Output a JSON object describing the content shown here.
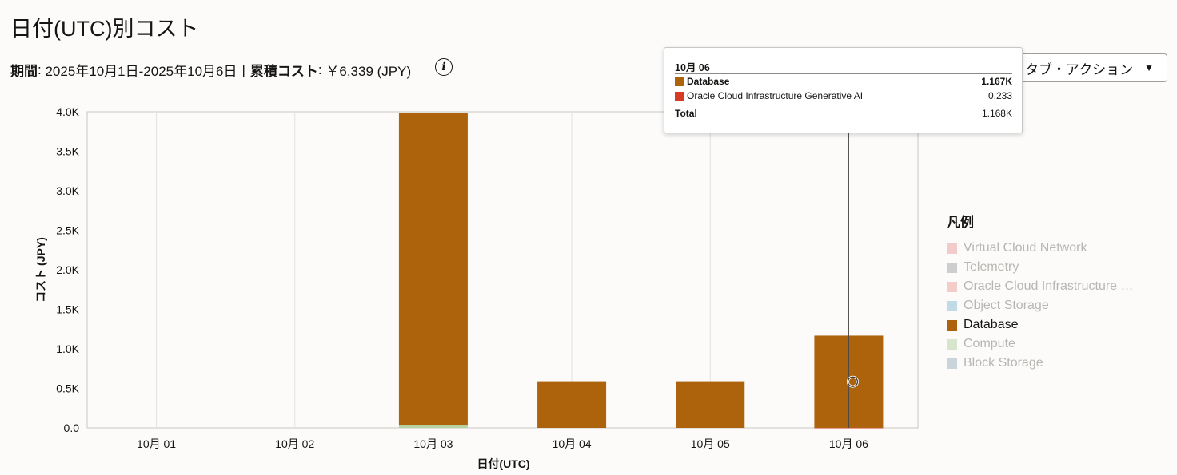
{
  "title": "日付(UTC)別コスト",
  "summary": {
    "period_label": "期間",
    "period_value": "2025年10月1日-2025年10月6日",
    "separator": "|",
    "cumulative_label": "累積コスト",
    "cumulative_value": "￥6,339 (JPY)",
    "info_icon": "i"
  },
  "actions": {
    "label": "タブ・アクション",
    "caret": "▼"
  },
  "tooltip": {
    "date": "10月 06",
    "rows": [
      {
        "name": "Database",
        "value": "1.167K",
        "color": "#ad620c",
        "bold": true
      },
      {
        "name": "Oracle Cloud Infrastructure Generative AI",
        "value": "0.233",
        "color": "#d63b25",
        "bold": false
      }
    ],
    "total_label": "Total",
    "total_value": "1.168K"
  },
  "legend": {
    "title": "凡例",
    "items": [
      {
        "name": "Virtual Cloud Network",
        "color": "#e9a4a4",
        "active": false
      },
      {
        "name": "Telemetry",
        "color": "#a9a9a9",
        "active": false
      },
      {
        "name": "Oracle Cloud Infrastructure Generative AI",
        "display": "Oracle Cloud Infrastructure …",
        "color": "#eca69e",
        "active": false
      },
      {
        "name": "Object Storage",
        "color": "#8fbfd3",
        "active": false
      },
      {
        "name": "Database",
        "color": "#ad620c",
        "active": true
      },
      {
        "name": "Compute",
        "color": "#b6d3a4",
        "active": false
      },
      {
        "name": "Block Storage",
        "color": "#9eb6bf",
        "active": false
      }
    ]
  },
  "chart_data": {
    "type": "bar",
    "stacked": true,
    "xlabel": "日付(UTC)",
    "ylabel": "コスト (JPY)",
    "ylim": [
      0,
      4000
    ],
    "yticks": [
      {
        "v": 0,
        "label": "0.0"
      },
      {
        "v": 500,
        "label": "0.5K"
      },
      {
        "v": 1000,
        "label": "1.0K"
      },
      {
        "v": 1500,
        "label": "1.5K"
      },
      {
        "v": 2000,
        "label": "2.0K"
      },
      {
        "v": 2500,
        "label": "2.5K"
      },
      {
        "v": 3000,
        "label": "3.0K"
      },
      {
        "v": 3500,
        "label": "3.5K"
      },
      {
        "v": 4000,
        "label": "4.0K"
      }
    ],
    "categories": [
      "10月 01",
      "10月 02",
      "10月 03",
      "10月 04",
      "10月 05",
      "10月 06"
    ],
    "series": [
      {
        "name": "Compute",
        "color": "#b6d3a4",
        "values": [
          0,
          0,
          40,
          0,
          0,
          0
        ]
      },
      {
        "name": "Oracle Cloud Infrastructure Generative AI",
        "color": "#d63b25",
        "values": [
          0,
          0,
          0,
          0,
          0,
          0.233
        ]
      },
      {
        "name": "Database",
        "color": "#ad620c",
        "values": [
          0,
          0,
          3940,
          590,
          590,
          1167
        ]
      }
    ],
    "highlight_category": "10月 06",
    "legend_position": "right",
    "grid": true
  }
}
